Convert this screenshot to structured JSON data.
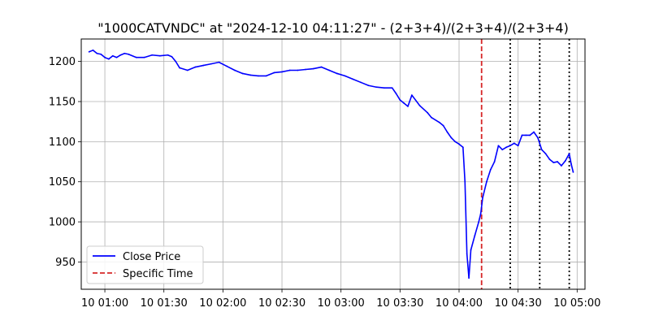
{
  "chart_data": {
    "type": "line",
    "title": "\"1000CATVNDC\" at \"2024-12-10 04:11:27\" - (2+3+4)/(2+3+4)/(2+3+4)",
    "xlabel": "",
    "ylabel": "",
    "x_ticks": [
      "10 01:00",
      "10 01:30",
      "10 02:00",
      "10 02:30",
      "10 03:00",
      "10 03:30",
      "10 04:00",
      "10 04:30",
      "10 05:00"
    ],
    "y_ticks": [
      950,
      1000,
      1050,
      1100,
      1150,
      1200
    ],
    "xlim": [
      "2024-12-10 00:48",
      "2024-12-10 05:04"
    ],
    "ylim": [
      916,
      1228
    ],
    "grid": true,
    "legend": {
      "placement": "lower-left",
      "entries": [
        "Close Price",
        "Specific Time"
      ]
    },
    "colors": {
      "close": "#0000ff",
      "specific": "#d62728",
      "markers": "#000000",
      "grid": "#b0b0b0"
    },
    "specific_time": "2024-12-10 04:11:27",
    "vertical_markers": [
      "2024-12-10 04:26:00",
      "2024-12-10 04:41:00",
      "2024-12-10 04:56:00"
    ],
    "series": [
      {
        "name": "Close Price",
        "x": [
          "2024-12-10 00:52",
          "2024-12-10 00:54",
          "2024-12-10 00:56",
          "2024-12-10 00:58",
          "2024-12-10 01:00",
          "2024-12-10 01:02",
          "2024-12-10 01:04",
          "2024-12-10 01:06",
          "2024-12-10 01:08",
          "2024-12-10 01:10",
          "2024-12-10 01:12",
          "2024-12-10 01:16",
          "2024-12-10 01:20",
          "2024-12-10 01:24",
          "2024-12-10 01:28",
          "2024-12-10 01:32",
          "2024-12-10 01:34",
          "2024-12-10 01:36",
          "2024-12-10 01:38",
          "2024-12-10 01:42",
          "2024-12-10 01:46",
          "2024-12-10 01:50",
          "2024-12-10 01:54",
          "2024-12-10 01:58",
          "2024-12-10 02:02",
          "2024-12-10 02:06",
          "2024-12-10 02:10",
          "2024-12-10 02:14",
          "2024-12-10 02:18",
          "2024-12-10 02:22",
          "2024-12-10 02:26",
          "2024-12-10 02:30",
          "2024-12-10 02:34",
          "2024-12-10 02:38",
          "2024-12-10 02:42",
          "2024-12-10 02:46",
          "2024-12-10 02:50",
          "2024-12-10 02:54",
          "2024-12-10 02:58",
          "2024-12-10 03:02",
          "2024-12-10 03:06",
          "2024-12-10 03:10",
          "2024-12-10 03:14",
          "2024-12-10 03:18",
          "2024-12-10 03:22",
          "2024-12-10 03:26",
          "2024-12-10 03:28",
          "2024-12-10 03:30",
          "2024-12-10 03:32",
          "2024-12-10 03:34",
          "2024-12-10 03:36",
          "2024-12-10 03:40",
          "2024-12-10 03:44",
          "2024-12-10 03:46",
          "2024-12-10 03:50",
          "2024-12-10 03:52",
          "2024-12-10 03:54",
          "2024-12-10 03:56",
          "2024-12-10 03:58",
          "2024-12-10 04:00",
          "2024-12-10 04:02",
          "2024-12-10 04:03",
          "2024-12-10 04:04",
          "2024-12-10 04:05",
          "2024-12-10 04:06",
          "2024-12-10 04:08",
          "2024-12-10 04:10",
          "2024-12-10 04:11",
          "2024-12-10 04:12",
          "2024-12-10 04:14",
          "2024-12-10 04:16",
          "2024-12-10 04:18",
          "2024-12-10 04:20",
          "2024-12-10 04:22",
          "2024-12-10 04:24",
          "2024-12-10 04:26",
          "2024-12-10 04:28",
          "2024-12-10 04:30",
          "2024-12-10 04:32",
          "2024-12-10 04:34",
          "2024-12-10 04:36",
          "2024-12-10 04:38",
          "2024-12-10 04:40",
          "2024-12-10 04:42",
          "2024-12-10 04:44",
          "2024-12-10 04:46",
          "2024-12-10 04:48",
          "2024-12-10 04:50",
          "2024-12-10 04:52",
          "2024-12-10 04:54",
          "2024-12-10 04:56",
          "2024-12-10 04:57",
          "2024-12-10 04:58"
        ],
        "values": [
          1212,
          1214,
          1210,
          1209,
          1205,
          1203,
          1207,
          1205,
          1208,
          1210,
          1209,
          1205,
          1205,
          1208,
          1207,
          1208,
          1206,
          1200,
          1192,
          1189,
          1193,
          1195,
          1197,
          1199,
          1194,
          1189,
          1185,
          1183,
          1182,
          1182,
          1186,
          1187,
          1189,
          1189,
          1190,
          1191,
          1193,
          1189,
          1185,
          1182,
          1178,
          1174,
          1170,
          1168,
          1167,
          1167,
          1160,
          1152,
          1148,
          1144,
          1158,
          1145,
          1136,
          1130,
          1124,
          1120,
          1112,
          1105,
          1100,
          1097,
          1093,
          1050,
          960,
          930,
          965,
          983,
          1000,
          1010,
          1030,
          1050,
          1065,
          1075,
          1095,
          1090,
          1093,
          1095,
          1098,
          1095,
          1108,
          1108,
          1108,
          1112,
          1105,
          1090,
          1085,
          1078,
          1074,
          1075,
          1070,
          1076,
          1085,
          1072,
          1062
        ]
      }
    ]
  }
}
